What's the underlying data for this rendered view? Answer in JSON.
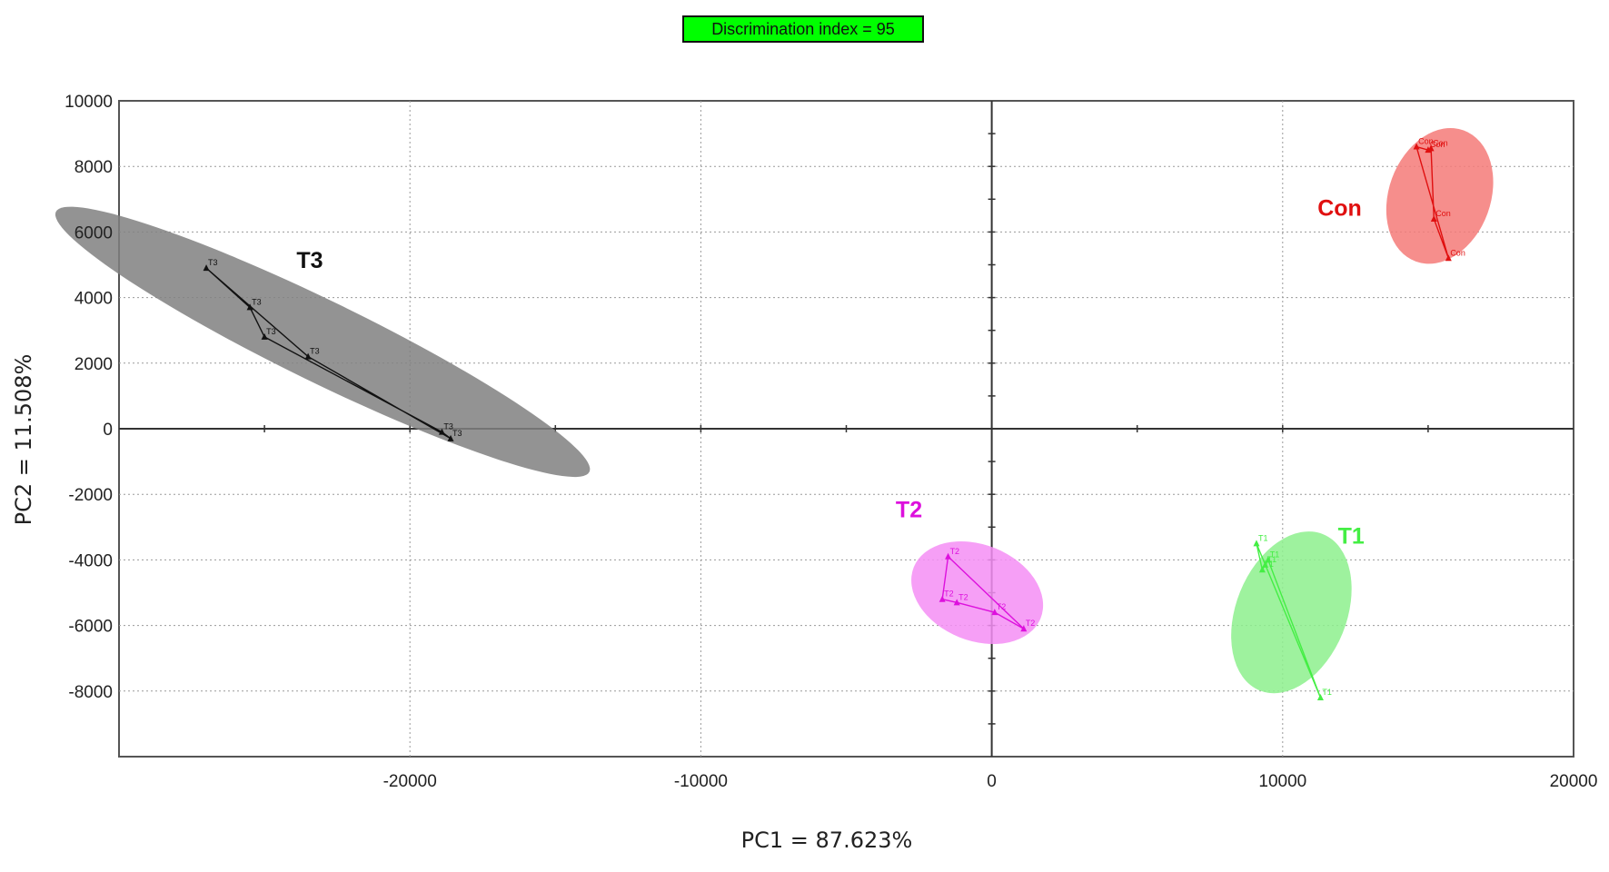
{
  "badge": {
    "text": "Discrimination index = 95",
    "color": "#00ff00"
  },
  "chart_data": {
    "type": "scatter",
    "title": "",
    "xlabel": "PC1 = 87.623%",
    "ylabel": "PC2 = 11.508%",
    "xlim": [
      -30000,
      20000
    ],
    "ylim": [
      -10000,
      10000
    ],
    "xticks": [
      -20000,
      -10000,
      0,
      10000,
      20000
    ],
    "xtick_labels": [
      "-20000",
      "-10000",
      "0",
      "10000",
      "20000"
    ],
    "yticks": [
      10000,
      8000,
      6000,
      4000,
      2000,
      0,
      -2000,
      -4000,
      -6000,
      -8000
    ],
    "ytick_labels": [
      "10000",
      "8000",
      "6000",
      "4000",
      "2000",
      "0",
      "-2000",
      "-4000",
      "-6000",
      "-8000"
    ],
    "grid": true,
    "zero_lines": true,
    "groups": [
      {
        "name": "T3",
        "color": "#111111",
        "fill": "#808080",
        "fill_opacity": 0.85,
        "label_pos": [
          -23900,
          4900
        ],
        "ellipse": {
          "cx": -23000,
          "cy": 2650,
          "rx": 10200,
          "ry": 1400,
          "angle_deg": 26
        },
        "points": [
          {
            "x": -27000,
            "y": 4900,
            "label": "T3"
          },
          {
            "x": -25500,
            "y": 3700,
            "label": "T3"
          },
          {
            "x": -25000,
            "y": 2800,
            "label": "T3"
          },
          {
            "x": -23500,
            "y": 2200,
            "label": "T3"
          },
          {
            "x": -18900,
            "y": -100,
            "label": "T3"
          },
          {
            "x": -18600,
            "y": -300,
            "label": "T3"
          }
        ],
        "hull": [
          0,
          1,
          2,
          4,
          5,
          3,
          0
        ]
      },
      {
        "name": "Con",
        "color": "#e01010",
        "fill": "#f47a78",
        "fill_opacity": 0.85,
        "label_pos": [
          11200,
          6500
        ],
        "ellipse": {
          "cx": 15400,
          "cy": 7100,
          "rx": 2400,
          "ry": 1750,
          "angle_deg": -70
        },
        "points": [
          {
            "x": 14600,
            "y": 8600,
            "label": "Con"
          },
          {
            "x": 15000,
            "y": 8500,
            "label": "Con"
          },
          {
            "x": 15100,
            "y": 8550,
            "label": "Con"
          },
          {
            "x": 15200,
            "y": 6400,
            "label": "Con"
          },
          {
            "x": 15700,
            "y": 5200,
            "label": "Con"
          }
        ],
        "hull": [
          0,
          4,
          3,
          2,
          1,
          0
        ]
      },
      {
        "name": "T2",
        "color": "#dd10dd",
        "fill": "#f58ef5",
        "fill_opacity": 0.85,
        "label_pos": [
          -3300,
          -2700
        ],
        "ellipse": {
          "cx": -500,
          "cy": -5000,
          "rx": 2350,
          "ry": 1650,
          "angle_deg": 22
        },
        "points": [
          {
            "x": -1500,
            "y": -3900,
            "label": "T2"
          },
          {
            "x": -1700,
            "y": -5200,
            "label": "T2"
          },
          {
            "x": -1200,
            "y": -5300,
            "label": "T2"
          },
          {
            "x": 100,
            "y": -5600,
            "label": "T2"
          },
          {
            "x": 1100,
            "y": -6100,
            "label": "T2"
          }
        ],
        "hull": [
          0,
          4,
          3,
          2,
          1,
          0
        ]
      },
      {
        "name": "T1",
        "color": "#44ee44",
        "fill": "#8df08d",
        "fill_opacity": 0.85,
        "label_pos": [
          11900,
          -3500
        ],
        "ellipse": {
          "cx": 10300,
          "cy": -5600,
          "rx": 2900,
          "ry": 1900,
          "angle_deg": -68
        },
        "points": [
          {
            "x": 9100,
            "y": -3500,
            "label": "T1"
          },
          {
            "x": 9300,
            "y": -4300,
            "label": "T1"
          },
          {
            "x": 9500,
            "y": -4000,
            "label": "T1"
          },
          {
            "x": 9400,
            "y": -4150,
            "label": "T1"
          },
          {
            "x": 11300,
            "y": -8200,
            "label": "T1"
          }
        ],
        "hull": [
          0,
          4,
          2,
          3,
          1,
          0
        ]
      }
    ]
  }
}
